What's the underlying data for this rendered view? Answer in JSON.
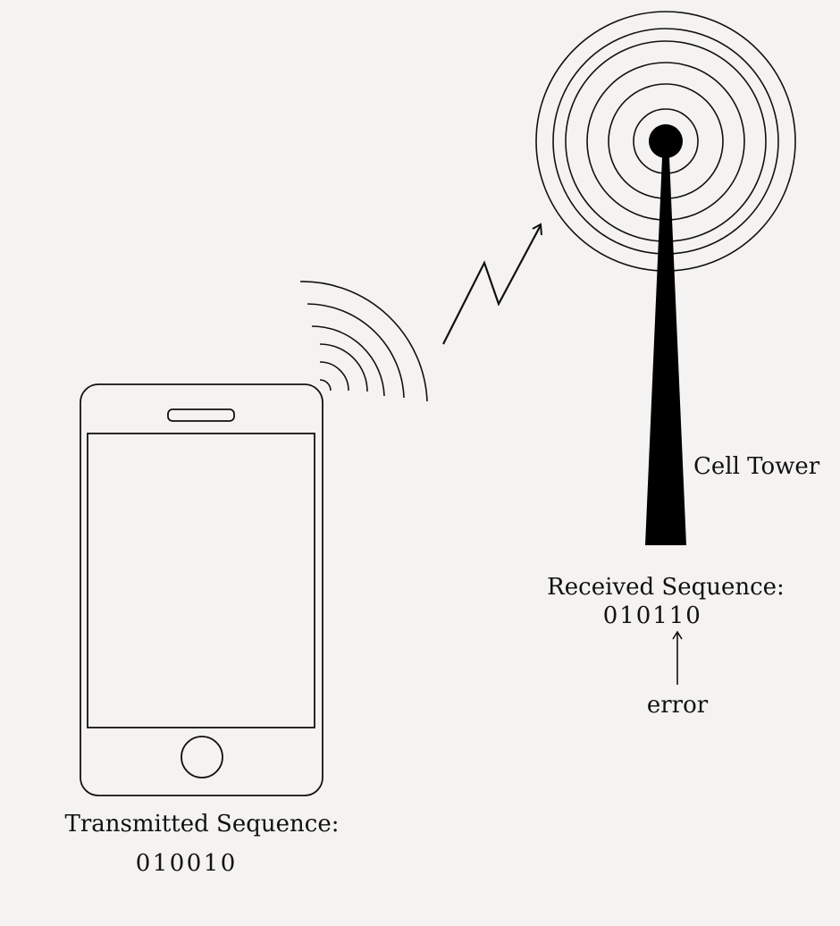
{
  "tower": {
    "label": "Cell Tower"
  },
  "received": {
    "title": "Received Sequence:",
    "bits": [
      "0",
      "1",
      "0",
      "1",
      "1",
      "0"
    ],
    "error_index": 3,
    "error_label": "error"
  },
  "transmitted": {
    "title": "Transmitted Sequence:",
    "bits": [
      "0",
      "1",
      "0",
      "0",
      "1",
      "0"
    ],
    "highlight_index": 3
  },
  "colors": {
    "ink": "#111111",
    "highlight": "#1a1acc",
    "background": "#f4f3f1"
  },
  "icons": {
    "phone": "smartphone-icon",
    "tower": "cell-tower-icon",
    "signal": "wifi-waves-icon"
  }
}
